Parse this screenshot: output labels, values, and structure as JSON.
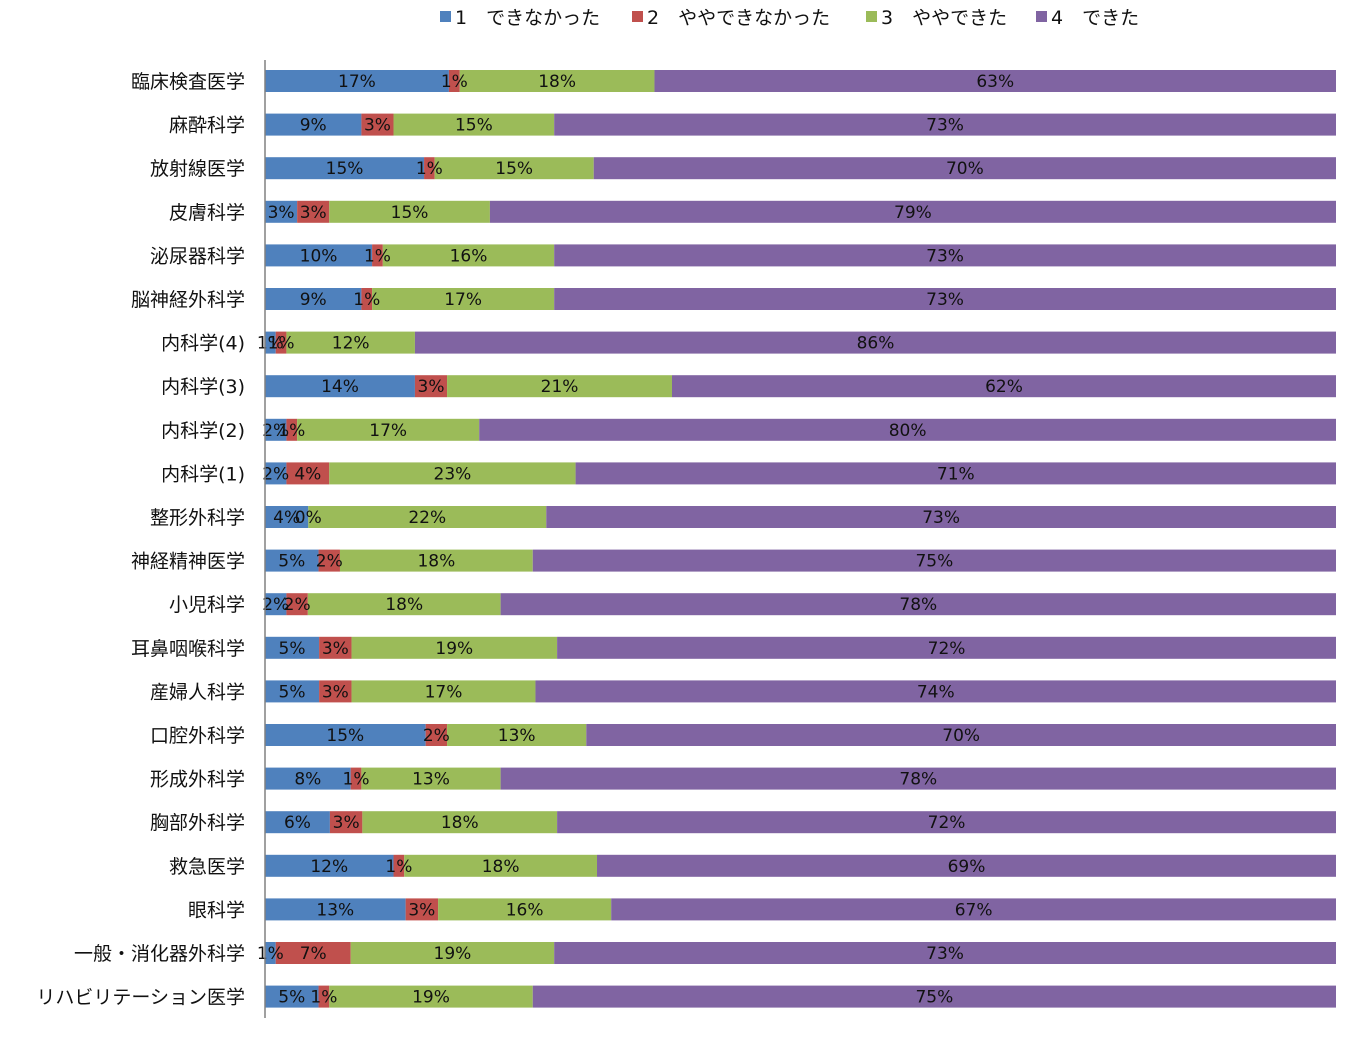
{
  "chart_data": {
    "type": "bar",
    "orientation": "horizontal",
    "stacked": "percent",
    "legend_position": "top",
    "grid": false,
    "xlim": [
      0,
      100
    ],
    "series": [
      {
        "name": "1　できなかった",
        "color": "#4F81BD",
        "values": [
          17,
          9,
          15,
          3,
          10,
          9,
          1,
          14,
          2,
          2,
          4,
          5,
          2,
          5,
          5,
          15,
          8,
          6,
          12,
          13,
          1,
          5
        ]
      },
      {
        "name": "2　ややできなかった",
        "color": "#C0504D",
        "values": [
          1,
          3,
          1,
          3,
          1,
          1,
          1,
          3,
          1,
          4,
          0,
          2,
          2,
          3,
          3,
          2,
          1,
          3,
          1,
          3,
          7,
          1
        ]
      },
      {
        "name": "3　ややできた",
        "color": "#9BBB59",
        "values": [
          18,
          15,
          15,
          15,
          16,
          17,
          12,
          21,
          17,
          23,
          22,
          18,
          18,
          19,
          17,
          13,
          13,
          18,
          18,
          16,
          19,
          19
        ]
      },
      {
        "name": "4　できた",
        "color": "#8064A2",
        "values": [
          63,
          73,
          70,
          79,
          73,
          73,
          86,
          62,
          80,
          71,
          73,
          75,
          78,
          72,
          74,
          70,
          78,
          72,
          69,
          67,
          73,
          75
        ]
      }
    ],
    "categories": [
      "臨床検査医学",
      "麻酔科学",
      "放射線医学",
      "皮膚科学",
      "泌尿器科学",
      "脳神経外科学",
      "内科学(4)",
      "内科学(3)",
      "内科学(2)",
      "内科学(1)",
      "整形外科学",
      "神経精神医学",
      "小児科学",
      "耳鼻咽喉科学",
      "産婦人科学",
      "口腔外科学",
      "形成外科学",
      "胸部外科学",
      "救急医学",
      "眼科学",
      "一般・消化器外科学",
      "リハビリテーション医学"
    ]
  }
}
